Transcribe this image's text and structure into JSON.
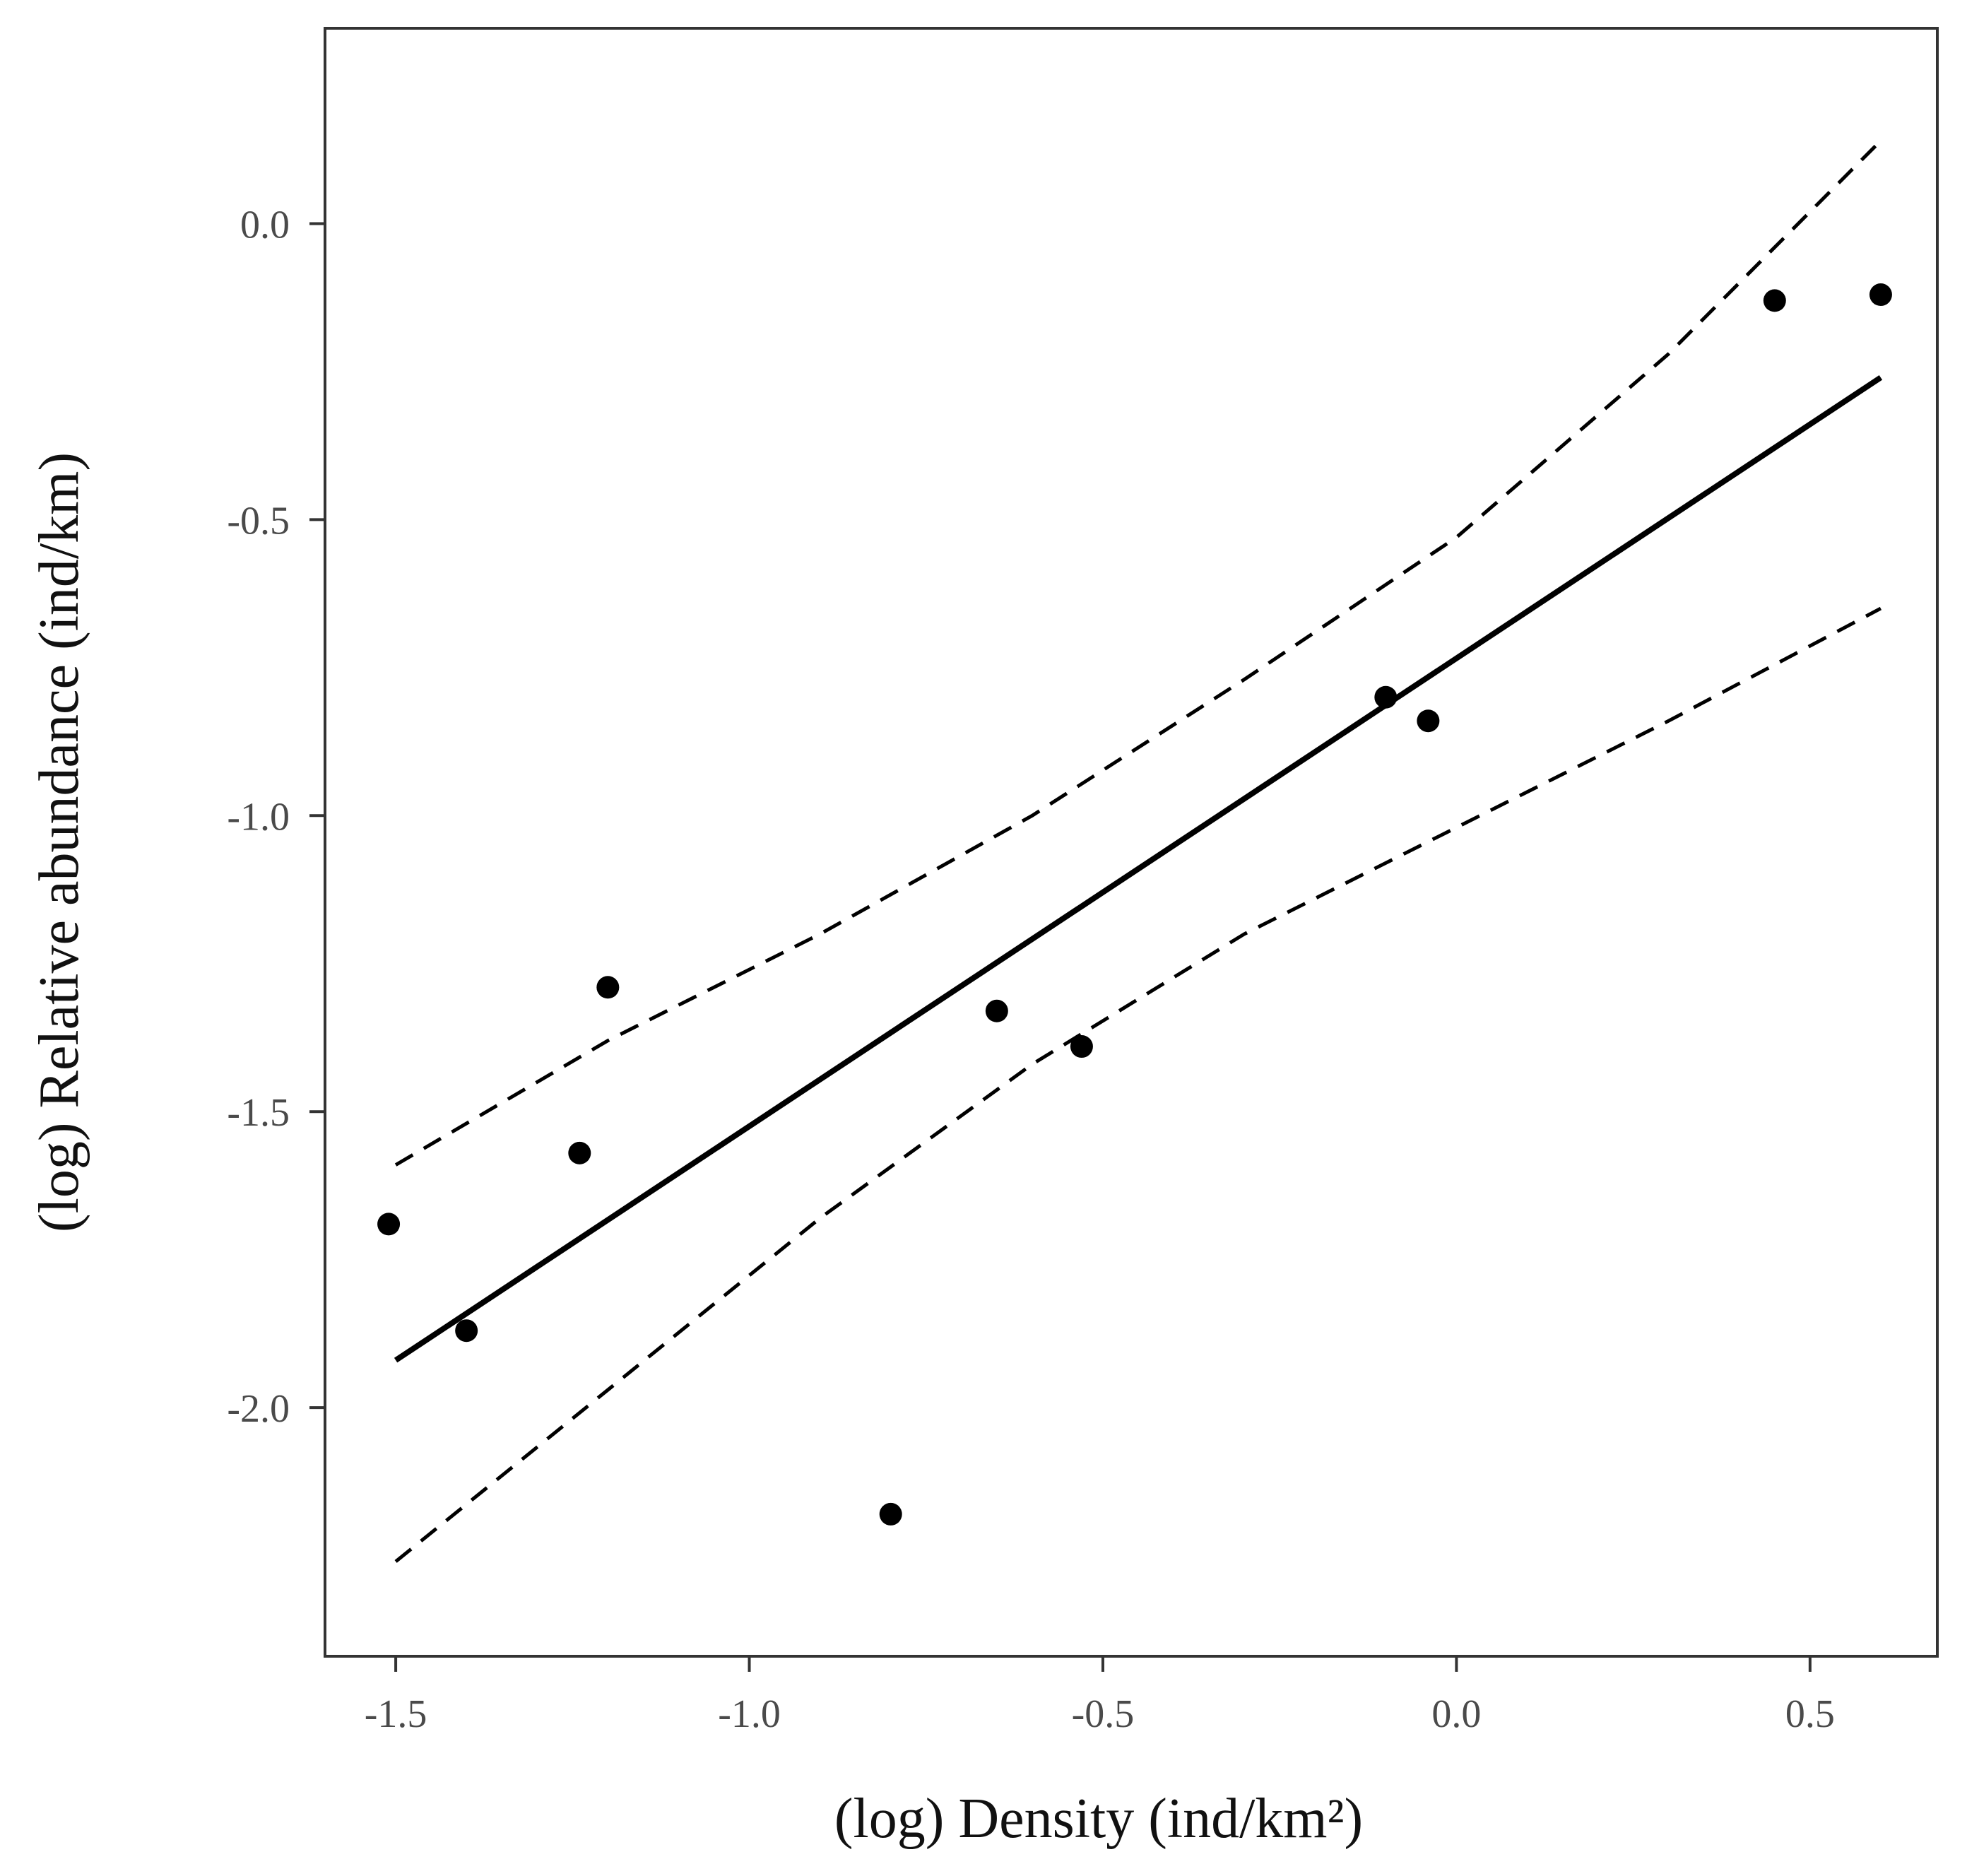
{
  "chart_data": {
    "type": "scatter",
    "title": "",
    "xlabel": "(log) Density (ind/km²)",
    "ylabel": "(log) Relative abundance (ind/km)",
    "xlim": [
      -1.6,
      0.68
    ],
    "ylim": [
      -2.42,
      0.33
    ],
    "xticks": [
      -1.5,
      -1.0,
      -0.5,
      0.0,
      0.5
    ],
    "yticks": [
      0.0,
      -0.5,
      -1.0,
      -1.5,
      -2.0
    ],
    "xtick_labels": [
      "-1.5",
      "-1.0",
      "-0.5",
      "0.0",
      "0.5"
    ],
    "ytick_labels": [
      "0.0",
      "-0.5",
      "-1.0",
      "-1.5",
      "-2.0"
    ],
    "grid": false,
    "legend": "none",
    "points": [
      {
        "x": -1.51,
        "y": -1.69
      },
      {
        "x": -1.4,
        "y": -1.87
      },
      {
        "x": -1.24,
        "y": -1.57
      },
      {
        "x": -1.2,
        "y": -1.29
      },
      {
        "x": -0.8,
        "y": -2.18
      },
      {
        "x": -0.65,
        "y": -1.33
      },
      {
        "x": -0.53,
        "y": -1.39
      },
      {
        "x": -0.1,
        "y": -0.8
      },
      {
        "x": -0.04,
        "y": -0.84
      },
      {
        "x": 0.45,
        "y": -0.13
      },
      {
        "x": 0.6,
        "y": -0.12
      }
    ],
    "fit_line": {
      "style": "solid",
      "x": [
        -1.5,
        0.6
      ],
      "y": [
        -1.92,
        -0.26
      ]
    },
    "ci_upper": {
      "style": "dashed",
      "x": [
        -1.5,
        -1.2,
        -0.9,
        -0.6,
        -0.3,
        0.0,
        0.3,
        0.6
      ],
      "y": [
        -1.59,
        -1.38,
        -1.2,
        -1.0,
        -0.77,
        -0.53,
        -0.22,
        0.14
      ]
    },
    "ci_lower": {
      "style": "dashed",
      "x": [
        -1.5,
        -1.2,
        -0.9,
        -0.6,
        -0.3,
        0.0,
        0.3,
        0.6
      ],
      "y": [
        -2.26,
        -1.97,
        -1.68,
        -1.42,
        -1.2,
        -1.02,
        -0.84,
        -0.65
      ]
    },
    "colors": {
      "points": "#000000",
      "lines": "#000000",
      "axes": "#333333"
    }
  }
}
